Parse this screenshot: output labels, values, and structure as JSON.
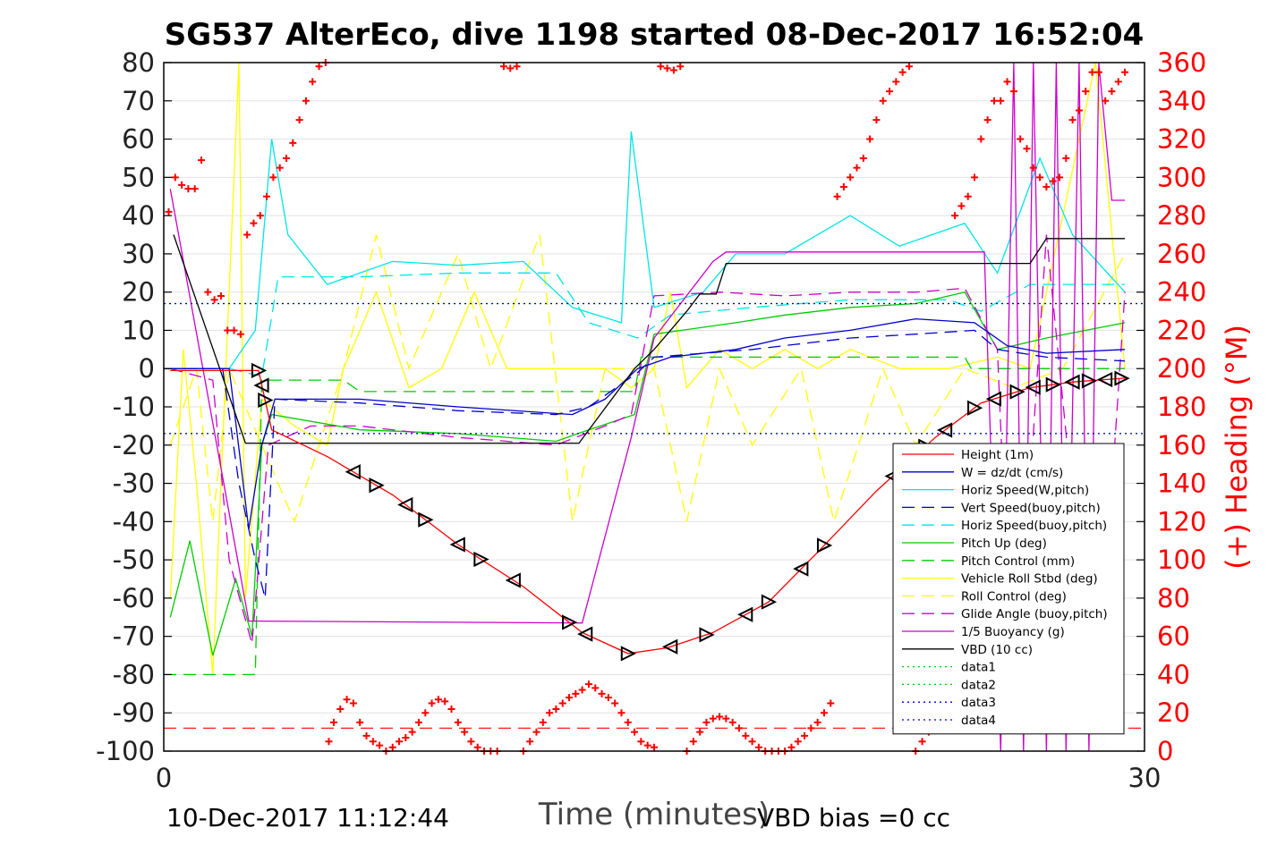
{
  "chart_data": {
    "type": "line",
    "title": "SG537 AlterEco, dive 1198 started 08-Dec-2017 16:52:04",
    "xlabel": "Time (minutes)",
    "ylabel": "",
    "y2label": "(+) Heading (°M)",
    "xlim": [
      0,
      30
    ],
    "ylim": [
      -100,
      80
    ],
    "y2lim": [
      0,
      360
    ],
    "x_ticks": [
      "0",
      "30"
    ],
    "y_ticks": [
      "80",
      "70",
      "60",
      "50",
      "40",
      "30",
      "20",
      "10",
      "0",
      "-10",
      "-20",
      "-30",
      "-40",
      "-50",
      "-60",
      "-70",
      "-80",
      "-90",
      "-100"
    ],
    "y2_ticks": [
      "360",
      "340",
      "320",
      "300",
      "280",
      "260",
      "240",
      "220",
      "200",
      "180",
      "160",
      "140",
      "120",
      "100",
      "80",
      "60",
      "40",
      "20",
      "0"
    ],
    "grid": true,
    "legend_position": "bottom-right",
    "colors": {
      "height": "#ff0000",
      "w": "#0000cc",
      "hspeed_w": "#00e5e5",
      "vspeed_buoy": "#0000cc",
      "hspeed_buoy": "#00e5e5",
      "pitch": "#00cc00",
      "pitch_control": "#00cc00",
      "roll": "#ffff00",
      "roll_control": "#ffff00",
      "glide": "#cc00cc",
      "buoyancy": "#cc00cc",
      "vbd": "#000000",
      "heading": "#ff0000",
      "data1": "#00cc00",
      "data2": "#00cc00",
      "data3": "#0000cc",
      "data4": "#0000cc",
      "right_axis": "#ff0000"
    },
    "series": [
      {
        "name": "Height (1m)",
        "key": "height",
        "style": "solid",
        "x": [
          0.2,
          2.9,
          3.3,
          5.0,
          7.0,
          9.0,
          11.0,
          12.8,
          14.2,
          15.4,
          16.8,
          18.5,
          20.0,
          21.8,
          23.6,
          25.0,
          26.5,
          27.8,
          29.4
        ],
        "y": [
          -0.5,
          -0.5,
          -16,
          -23,
          -33,
          -46,
          -57,
          -69,
          -74.5,
          -73,
          -69,
          -61,
          -48,
          -32,
          -18,
          -9,
          -5,
          -3.5,
          -2.5
        ]
      },
      {
        "name": "W = dz/dt (cm/s)",
        "key": "w",
        "style": "solid",
        "x": [
          0,
          2.0,
          2.6,
          3.0,
          3.4,
          6.0,
          9.0,
          12.5,
          13.5,
          14.5,
          15.5,
          17.5,
          19.0,
          21.0,
          23.0,
          24.8,
          25.8,
          27.0,
          29.4
        ],
        "y": [
          0,
          0,
          -42,
          -20,
          -8,
          -8,
          -10,
          -12,
          -8,
          0,
          3,
          5,
          8,
          10,
          13,
          12,
          6,
          4,
          5
        ]
      },
      {
        "name": "Horiz Speed(W,pitch)",
        "key": "hspeed_w",
        "style": "solid",
        "x": [
          0.2,
          2.0,
          2.8,
          3.3,
          3.8,
          5.0,
          7.0,
          9.0,
          11.0,
          12.5,
          14.0,
          14.3,
          15.0,
          16.5,
          17.5,
          19.0,
          21.0,
          22.5,
          24.5,
          25.5,
          26.8,
          27.8,
          29.4
        ],
        "y": [
          0,
          0,
          10,
          60,
          35,
          22,
          28,
          27,
          28,
          16,
          12,
          62,
          16,
          20,
          30,
          30,
          40,
          32,
          38,
          25,
          55,
          35,
          20
        ]
      },
      {
        "name": "Vert Speed(buoy,pitch)",
        "key": "vspeed_buoy",
        "style": "dashed",
        "x": [
          0,
          1.8,
          2.3,
          2.8,
          3.1,
          3.4,
          6.0,
          9.0,
          12.0,
          13.0,
          14.5,
          15.0,
          18.0,
          21.0,
          23.0,
          24.8,
          25.5,
          27.0,
          29.4
        ],
        "y": [
          0,
          0,
          -30,
          -50,
          -60,
          -8,
          -9,
          -11,
          -12,
          -10,
          -1,
          3,
          5,
          8,
          9,
          10,
          5,
          3,
          2
        ]
      },
      {
        "name": "Horiz Speed(buoy,pitch)",
        "key": "hspeed_buoy",
        "style": "dashed",
        "x": [
          0.2,
          2.0,
          3.0,
          3.5,
          6.0,
          9.0,
          12.0,
          13.0,
          14.5,
          15.5,
          18.0,
          21.0,
          24.0,
          25.0,
          26.5,
          29.4
        ],
        "y": [
          0,
          0,
          -2,
          24,
          24,
          25,
          25,
          12,
          8,
          14,
          16,
          18,
          18,
          15,
          22,
          22
        ]
      },
      {
        "name": "Pitch Up (deg)",
        "key": "pitch",
        "style": "solid",
        "x": [
          0.2,
          0.8,
          1.5,
          2.2,
          2.7,
          3.0,
          3.3,
          6.0,
          9.0,
          12.0,
          13.0,
          14.4,
          15.0,
          17.5,
          19.0,
          21.0,
          23.0,
          24.5,
          25.5,
          27.0,
          29.4
        ],
        "y": [
          -65,
          -45,
          -75,
          -55,
          -70,
          -20,
          -12,
          -16,
          -17,
          -19,
          -16,
          -12,
          9,
          12,
          14,
          16,
          17,
          20,
          5,
          8,
          12
        ]
      },
      {
        "name": "Pitch Control (mm)",
        "key": "pitch_control",
        "style": "dashed",
        "x": [
          0,
          2.8,
          3.0,
          5.5,
          6.0,
          12.8,
          14.4,
          14.6,
          24.5,
          24.7,
          29.4
        ],
        "y": [
          -80,
          -80,
          -3,
          -3,
          -6,
          -6,
          -6,
          3,
          3,
          0,
          0
        ]
      },
      {
        "name": "Vehicle Roll Stbd (deg)",
        "key": "roll",
        "style": "solid",
        "x": [
          0.2,
          0.6,
          1.0,
          1.5,
          2.3,
          2.5,
          3.0,
          4.0,
          5.0,
          5.5,
          6.5,
          7.5,
          8.5,
          9.5,
          10.5,
          11.5,
          12.5,
          13.5,
          14.3,
          15.0,
          15.5,
          16.0,
          17.0,
          18.0,
          19.0,
          20.0,
          21.0,
          22.5,
          24.0,
          25.5,
          26.5,
          27.5,
          28.5,
          29.4
        ],
        "y": [
          -60,
          5,
          -30,
          -80,
          80,
          -60,
          -8,
          -15,
          -20,
          0,
          20,
          -5,
          0,
          20,
          0,
          0,
          0,
          0,
          -5,
          0,
          20,
          -5,
          5,
          0,
          5,
          0,
          5,
          0,
          0,
          3,
          0,
          40,
          80,
          0
        ]
      },
      {
        "name": "Roll Control (deg)",
        "key": "roll_control",
        "style": "dashed",
        "x": [
          0.2,
          1.0,
          1.5,
          2.0,
          3.0,
          4.0,
          5.5,
          6.5,
          7.5,
          9.0,
          10.0,
          11.5,
          12.5,
          13.5,
          15.0,
          16.0,
          17.0,
          18.0,
          19.5,
          20.5,
          22.0,
          23.0,
          24.5,
          26.0,
          27.5,
          29.4
        ],
        "y": [
          -20,
          0,
          -40,
          0,
          -20,
          -40,
          0,
          35,
          0,
          30,
          0,
          35,
          -40,
          0,
          0,
          -40,
          0,
          -20,
          0,
          -40,
          0,
          -20,
          0,
          -5,
          0,
          30
        ]
      },
      {
        "name": "Glide Angle (buoy,pitch)",
        "key": "glide",
        "style": "dashed",
        "x": [
          0.2,
          1.5,
          2.0,
          2.7,
          3.2,
          4.5,
          6.0,
          9.0,
          12.0,
          13.5,
          14.3,
          15.0,
          17.0,
          19.0,
          21.0,
          23.0,
          24.5,
          25.5,
          26.0,
          27.0,
          28.5,
          29.4
        ],
        "y": [
          0,
          -3,
          -50,
          -72,
          -20,
          -15,
          -15,
          -18,
          -20,
          -15,
          -12,
          19,
          20,
          19,
          20,
          20,
          21,
          5,
          -95,
          35,
          -95,
          20
        ]
      },
      {
        "name": "1/5 Buoyancy (g)",
        "key": "buoyancy",
        "style": "solid",
        "x": [
          0.2,
          2.6,
          2.9,
          12.8,
          14.3,
          15.0,
          16.8,
          17.2,
          24.7,
          25.1,
          25.6,
          26.0,
          26.3,
          26.6,
          27.0,
          27.3,
          27.6,
          28.0,
          28.3,
          28.6,
          29.0,
          29.4
        ],
        "y": [
          47,
          -66,
          -66,
          -66.5,
          -18,
          8,
          28,
          30.5,
          30.5,
          30.5,
          -100,
          80,
          -100,
          80,
          -100,
          80,
          -100,
          80,
          -100,
          80,
          44,
          44
        ]
      },
      {
        "name": "VBD (10 cc)",
        "key": "vbd",
        "style": "solid",
        "x": [
          0.3,
          2.5,
          2.6,
          12.7,
          14.4,
          15.0,
          15.5,
          16.0,
          16.4,
          16.9,
          17.2,
          19.0,
          26.0,
          26.3,
          26.5,
          27.0,
          29.4
        ],
        "y": [
          35,
          -19.5,
          -19.5,
          -19.5,
          0,
          5,
          10,
          15,
          19.5,
          19.5,
          27.5,
          27.5,
          27.5,
          27.5,
          27.5,
          34,
          34
        ]
      },
      {
        "name": "data1",
        "key": "data1",
        "style": "dotted",
        "x": [
          0,
          30
        ],
        "y": [
          17,
          17
        ]
      },
      {
        "name": "data2",
        "key": "data2",
        "style": "dotted",
        "x": [
          0,
          30
        ],
        "y": [
          -17,
          -17
        ]
      },
      {
        "name": "data3",
        "key": "data3",
        "style": "dotted",
        "x": [
          0,
          30
        ],
        "y": [
          17,
          17
        ]
      },
      {
        "name": "data4",
        "key": "data4",
        "style": "dotted",
        "x": [
          0,
          30
        ],
        "y": [
          -17,
          -17
        ]
      }
    ],
    "heading_series": {
      "axis": "right",
      "marker": "plus",
      "key": "heading",
      "x": [
        0.15,
        0.35,
        0.55,
        0.75,
        0.95,
        1.15,
        1.35,
        1.55,
        1.75,
        1.95,
        2.15,
        2.35,
        2.55,
        2.75,
        2.95,
        3.15,
        3.35,
        3.55,
        3.75,
        3.95,
        4.15,
        4.35,
        4.55,
        4.75,
        4.95,
        5.05,
        5.2,
        5.4,
        5.6,
        5.8,
        6.0,
        6.2,
        6.4,
        6.6,
        6.8,
        7.0,
        7.2,
        7.4,
        7.6,
        7.8,
        8.0,
        8.2,
        8.4,
        8.6,
        8.8,
        9.0,
        9.2,
        9.4,
        9.6,
        9.8,
        10.0,
        10.2,
        10.4,
        10.6,
        10.8,
        11.0,
        11.2,
        11.4,
        11.6,
        11.8,
        12.0,
        12.2,
        12.4,
        12.6,
        12.8,
        13.0,
        13.2,
        13.4,
        13.6,
        13.8,
        14.0,
        14.2,
        14.4,
        14.6,
        14.8,
        15.0,
        15.2,
        15.4,
        15.6,
        15.8,
        16.0,
        16.2,
        16.4,
        16.6,
        16.8,
        17.0,
        17.2,
        17.4,
        17.6,
        17.8,
        18.0,
        18.2,
        18.4,
        18.6,
        18.8,
        19.0,
        19.2,
        19.4,
        19.6,
        19.8,
        20.0,
        20.2,
        20.4,
        20.6,
        20.8,
        21.0,
        21.2,
        21.4,
        21.6,
        21.8,
        22.0,
        22.2,
        22.4,
        22.6,
        22.8,
        23.0,
        23.2,
        23.4,
        23.6,
        23.8,
        24.0,
        24.2,
        24.4,
        24.6,
        24.8,
        25.0,
        25.2,
        25.4,
        25.6,
        25.8,
        26.0,
        26.2,
        26.4,
        26.6,
        26.8,
        27.0,
        27.2,
        27.4,
        27.6,
        27.8,
        28.0,
        28.2,
        28.4,
        28.6,
        28.8,
        29.0,
        29.2,
        29.4
      ],
      "y": [
        282,
        300,
        296,
        294,
        294,
        309,
        240,
        236,
        238,
        220,
        220,
        218,
        270,
        276,
        280,
        290,
        300,
        305,
        310,
        318,
        330,
        340,
        350,
        358,
        360,
        5,
        15,
        22,
        27,
        25,
        15,
        8,
        5,
        3,
        0,
        2,
        5,
        7,
        10,
        15,
        20,
        25,
        27,
        26,
        22,
        15,
        10,
        5,
        2,
        0,
        0,
        0,
        358,
        357,
        358,
        0,
        5,
        10,
        15,
        20,
        22,
        25,
        28,
        30,
        32,
        35,
        33,
        30,
        28,
        25,
        20,
        15,
        10,
        5,
        3,
        2,
        358,
        357,
        356,
        358,
        0,
        5,
        10,
        15,
        17,
        18,
        17,
        15,
        12,
        8,
        5,
        2,
        0,
        0,
        0,
        0,
        2,
        5,
        8,
        12,
        15,
        20,
        25,
        290,
        295,
        300,
        305,
        310,
        320,
        330,
        340,
        345,
        350,
        355,
        358,
        0,
        5,
        10,
        15,
        20,
        25,
        280,
        285,
        290,
        300,
        320,
        330,
        340,
        340,
        350,
        345,
        320,
        315,
        305,
        300,
        295,
        298,
        300,
        310,
        330,
        335,
        345,
        355,
        355,
        340,
        345,
        350,
        355
      ]
    },
    "bottom_reference": {
      "y": -94,
      "color": "#ff0000",
      "style": "dashed"
    },
    "footer_left": "10-Dec-2017 11:12:44",
    "footer_right": "VBD bias =0 cc"
  }
}
